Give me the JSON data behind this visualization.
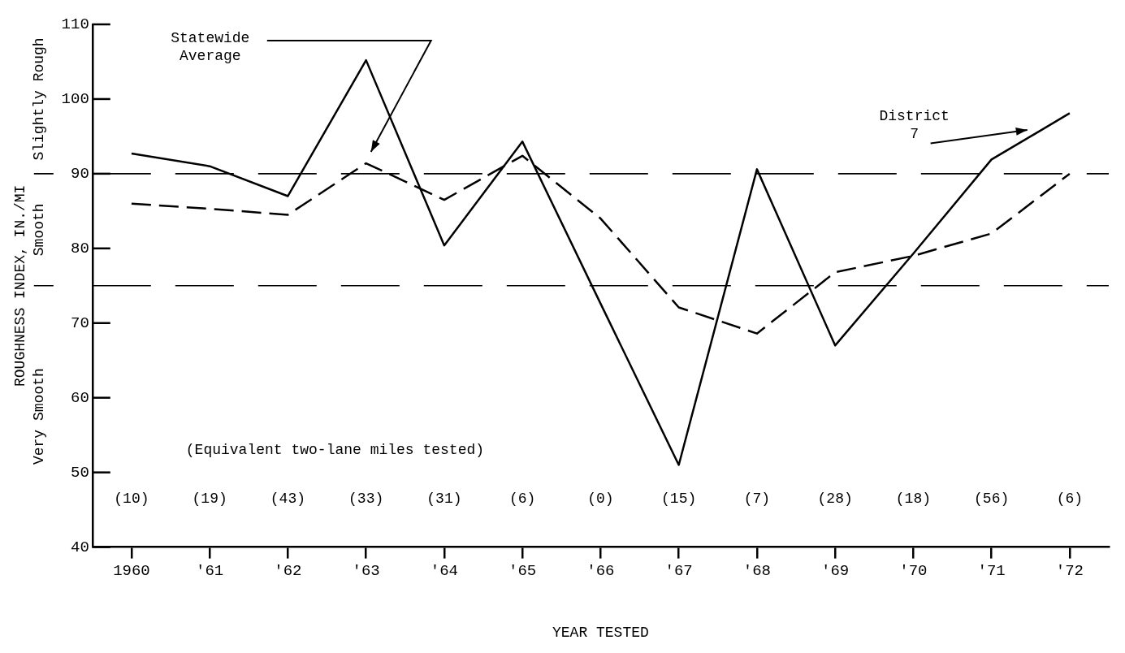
{
  "chart_data": {
    "type": "line",
    "xlabel": "YEAR TESTED",
    "ylabel": "ROUGHNESS INDEX, IN./MI",
    "categories": [
      "1960",
      "'61",
      "'62",
      "'63",
      "'64",
      "'65",
      "'66",
      "'67",
      "'68",
      "'69",
      "'70",
      "'71",
      "'72"
    ],
    "series": [
      {
        "name": "District 7",
        "color": "#000000",
        "line_style": "solid",
        "values": [
          92.7,
          91,
          87,
          105.2,
          80.4,
          94.3,
          72.6,
          51,
          90.6,
          67,
          79.3,
          91.9,
          98.1
        ]
      },
      {
        "name": "Statewide Average",
        "color": "#000000",
        "line_style": "dashed",
        "values": [
          86,
          85.3,
          84.5,
          91.4,
          86.5,
          92.4,
          84,
          72.1,
          68.6,
          76.8,
          79,
          82,
          90
        ]
      }
    ],
    "ylim": [
      40,
      110
    ],
    "yticks": [
      40,
      50,
      60,
      70,
      80,
      90,
      100,
      110
    ],
    "grid": false,
    "legend": false,
    "marker": "none",
    "ref_lines": [
      {
        "axis": "y",
        "value": 90,
        "color": "#000000",
        "line_style": "dashed"
      },
      {
        "axis": "y",
        "value": 75,
        "color": "#000000",
        "line_style": "dashed"
      }
    ],
    "annotations": [
      "Very Smooth",
      "Smooth",
      "Slightly Rough",
      "(Equivalent two-lane miles tested)",
      "(10)",
      "(19)",
      "(43)",
      "(33)",
      "(31)",
      "(6)",
      "(0)",
      "(15)",
      "(7)",
      "(28)",
      "(18)",
      "(56)",
      "(6)"
    ]
  }
}
